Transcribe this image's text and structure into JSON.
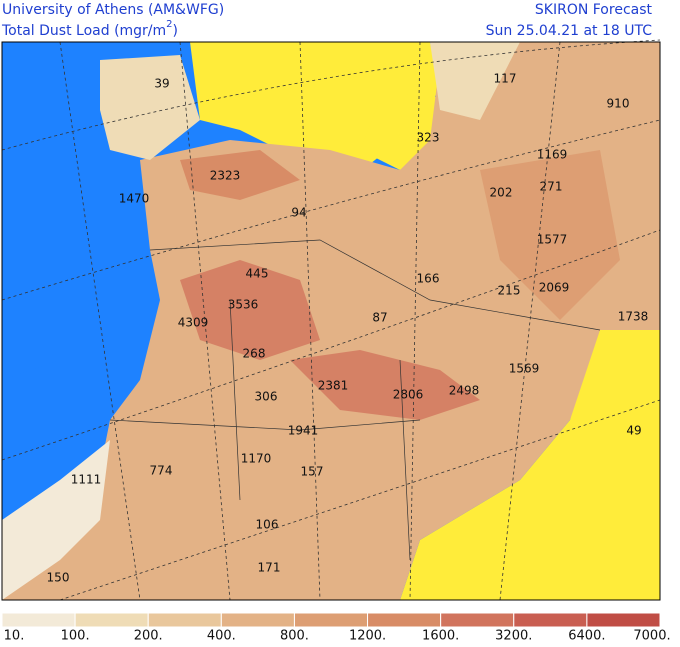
{
  "header": {
    "institution": "University of Athens (AM&WFG)",
    "product": {
      "text": "Total Dust Load (mgr/m",
      "superscript": "2",
      "suffix": ")"
    },
    "model": "SKIRON Forecast",
    "valid_time": "Sun 25.04.21 at 18 UTC"
  },
  "map_labels": [
    "39",
    "117",
    "910",
    "323",
    "1169",
    "2323",
    "202",
    "271",
    "1470",
    "94",
    "1577",
    "166",
    "445",
    "215",
    "2069",
    "3536",
    "4309",
    "87",
    "1738",
    "268",
    "1569",
    "2381",
    "2806",
    "2498",
    "306",
    "1941",
    "49",
    "1170",
    "774",
    "157",
    "1111",
    "106",
    "171",
    "150"
  ],
  "colorbar": {
    "labels": [
      "10.",
      "100.",
      "200.",
      "400.",
      "800.",
      "1200.",
      "1600.",
      "3200.",
      "6400.",
      "7000."
    ],
    "colors": [
      "#f3ead8",
      "#efdcb6",
      "#e9c79c",
      "#e3b286",
      "#dd9e73",
      "#d88c66",
      "#d1745d",
      "#c95e51",
      "#c04d45"
    ]
  }
}
